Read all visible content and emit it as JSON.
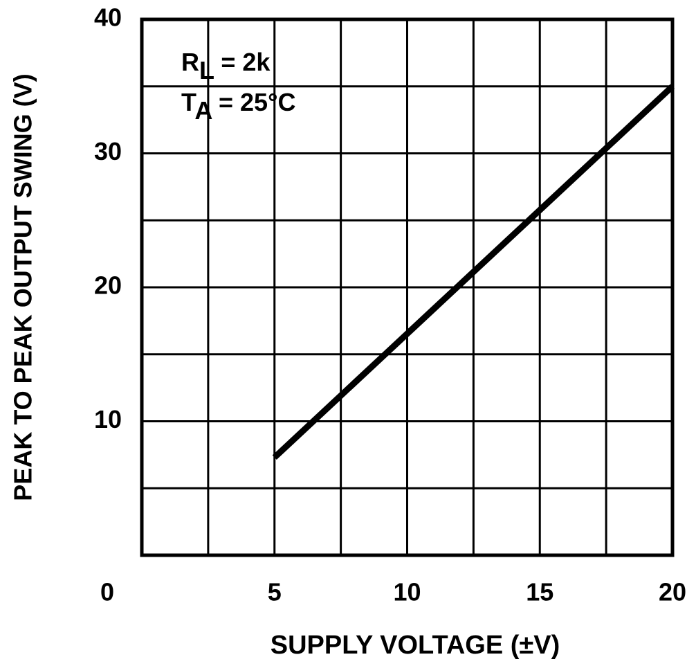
{
  "chart_data": {
    "type": "line",
    "x_label": "SUPPLY VOLTAGE (±V)",
    "y_label": "PEAK TO PEAK OUTPUT SWING (V)",
    "annotations": [
      {
        "main": "R",
        "sub": "L",
        "after": " = 2k"
      },
      {
        "main": "T",
        "sub": "A",
        "after": " = 25°C"
      }
    ],
    "x": [
      5,
      20
    ],
    "series": [
      {
        "color": "#000000",
        "values": [
          7.3,
          35
        ]
      }
    ],
    "xlim": [
      0,
      20
    ],
    "xticks": [
      0,
      5,
      10,
      15,
      20
    ],
    "xminor": [
      2.5,
      7.5,
      12.5,
      17.5
    ],
    "ylim": [
      0,
      40
    ],
    "yticks": [
      10,
      20,
      30,
      40
    ],
    "yminor": [
      5,
      15,
      25,
      35
    ],
    "grid": true
  }
}
